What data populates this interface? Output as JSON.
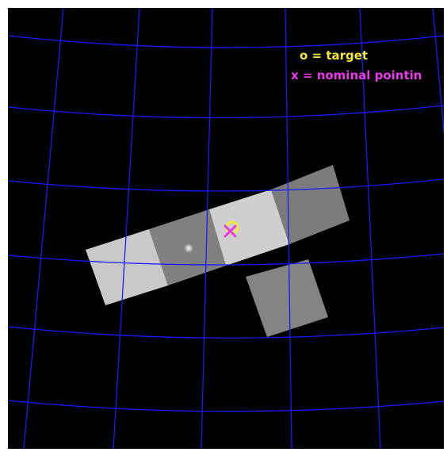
{
  "legend": {
    "target_label": "o = target",
    "pointing_label": "x = nominal pointin",
    "target_color": "#f4e83a",
    "pointing_color": "#e63be6"
  },
  "colors": {
    "background": "#000000",
    "grid": "#1a1aff",
    "target_marker": "#f4e83a",
    "pointing_marker": "#e63be6"
  },
  "icons": {
    "target": "yellow-circle-marker",
    "pointing": "magenta-x-marker"
  }
}
